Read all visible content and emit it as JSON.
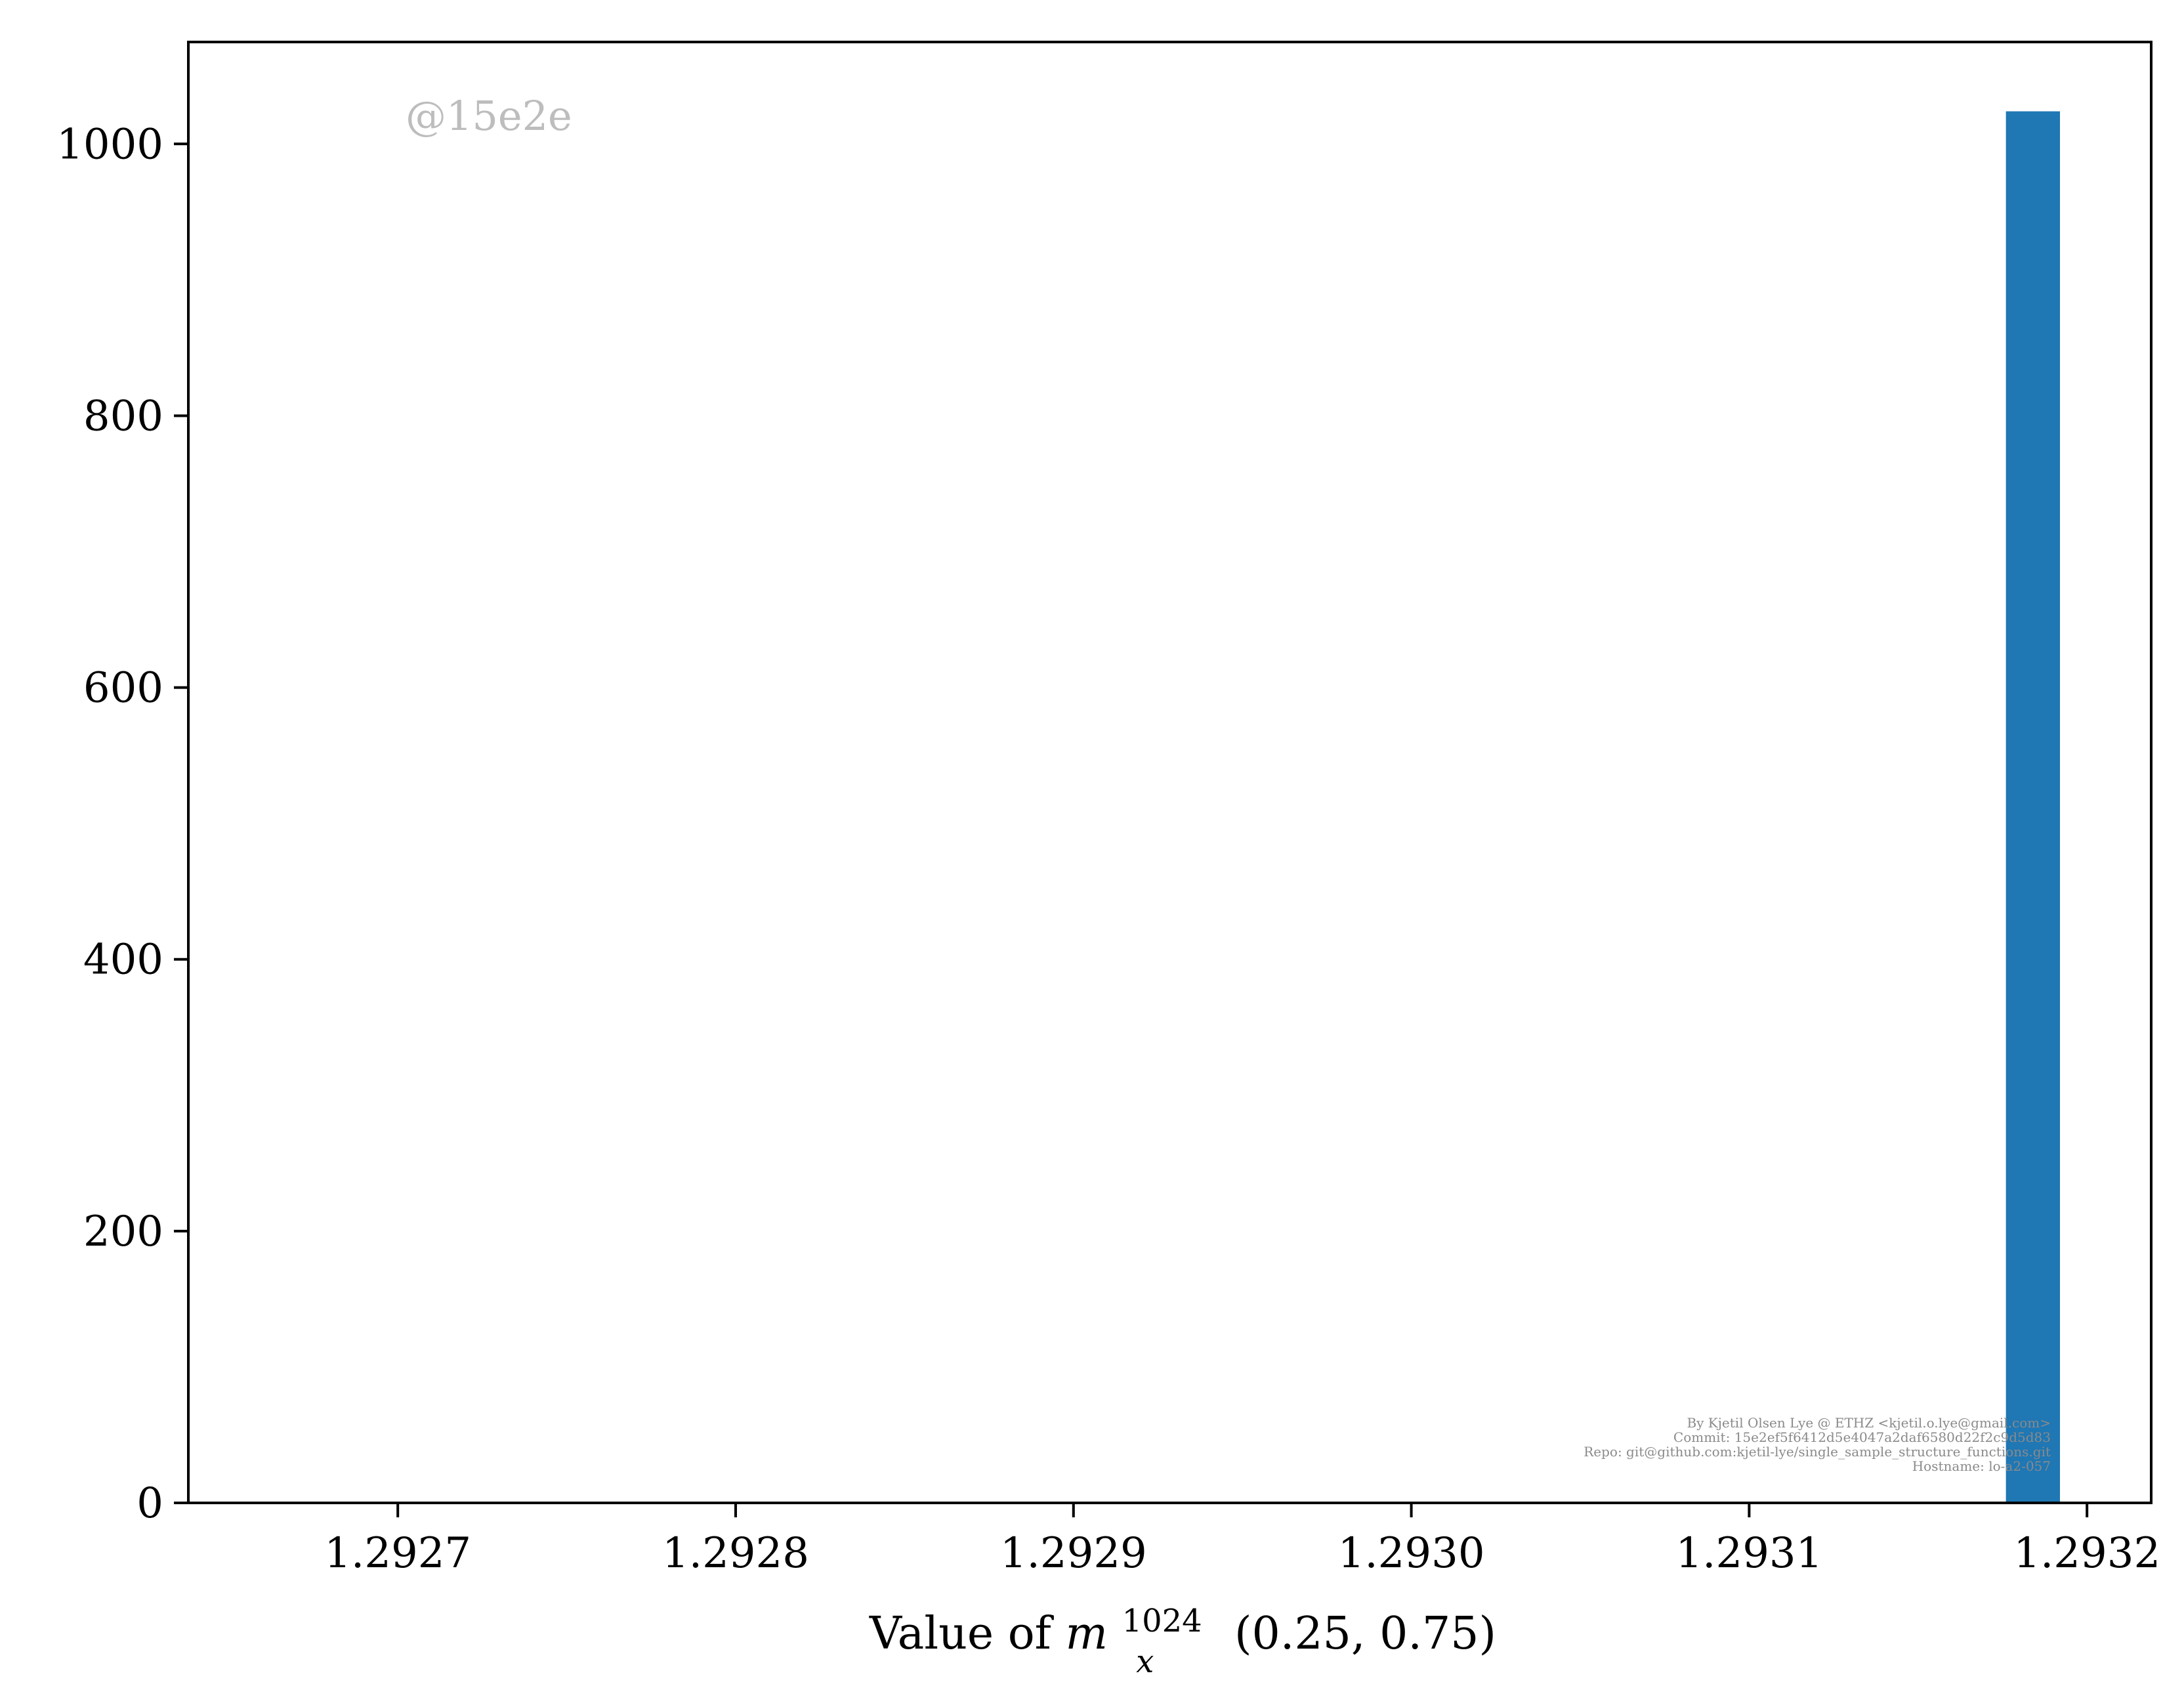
{
  "chart_data": {
    "type": "bar",
    "title": "",
    "xlabel": "Value of m_x^1024(0.25, 0.75)",
    "xlabel_parts": {
      "prefix": "Value of ",
      "var": "m",
      "sub": "x",
      "sup": "1024",
      "args": "(0.25, 0.75)"
    },
    "ylabel": "",
    "xlim": [
      1.292638,
      1.293219
    ],
    "ylim": [
      0,
      1075
    ],
    "x_ticks": [
      {
        "value": 1.2927,
        "label": "1.2927"
      },
      {
        "value": 1.2928,
        "label": "1.2928"
      },
      {
        "value": 1.2929,
        "label": "1.2929"
      },
      {
        "value": 1.293,
        "label": "1.2930"
      },
      {
        "value": 1.2931,
        "label": "1.2931"
      },
      {
        "value": 1.2932,
        "label": "1.2932"
      }
    ],
    "y_ticks": [
      {
        "value": 0,
        "label": "0"
      },
      {
        "value": 200,
        "label": "200"
      },
      {
        "value": 400,
        "label": "400"
      },
      {
        "value": 600,
        "label": "600"
      },
      {
        "value": 800,
        "label": "800"
      },
      {
        "value": 1000,
        "label": "1000"
      }
    ],
    "bins": [
      {
        "x0": 1.293176,
        "x1": 1.293192,
        "count": 1024
      }
    ],
    "bar_color": "#1f77b4",
    "grid": false,
    "legend": "none"
  },
  "watermark": "@15e2e",
  "meta_lines": [
    "By Kjetil Olsen Lye @ ETHZ <kjetil.o.lye@gmail.com>",
    "Commit: 15e2ef5f6412d5e4047a2daf6580d22f2c9d5d83",
    "Repo: git@github.com:kjetil-lye/single_sample_structure_functions.git",
    "Hostname: lo-a2-057"
  ]
}
